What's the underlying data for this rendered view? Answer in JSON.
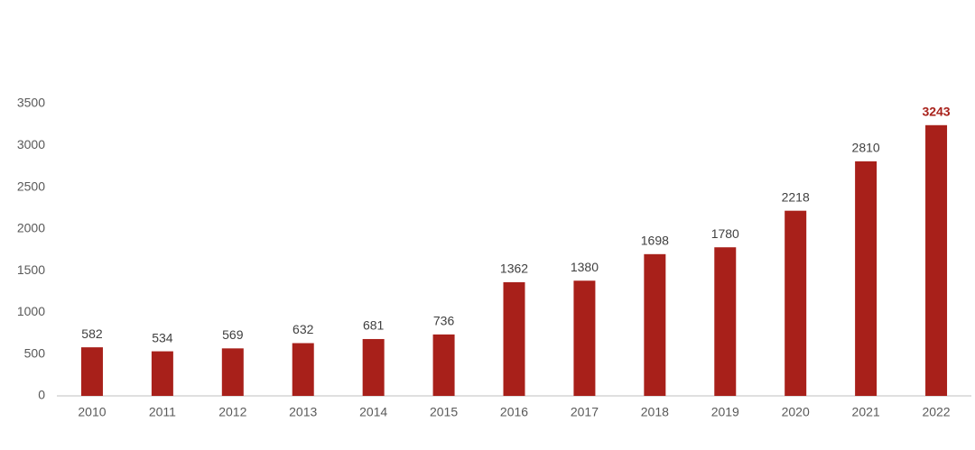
{
  "chart_data": {
    "type": "bar",
    "categories": [
      "2010",
      "2011",
      "2012",
      "2013",
      "2014",
      "2015",
      "2016",
      "2017",
      "2018",
      "2019",
      "2020",
      "2021",
      "2022"
    ],
    "values": [
      582,
      534,
      569,
      632,
      681,
      736,
      1362,
      1380,
      1698,
      1780,
      2218,
      2810,
      3243
    ],
    "color": "#a8201a",
    "ylim": [
      0,
      3500
    ],
    "yticks": [
      0,
      500,
      1000,
      1500,
      2000,
      2500,
      3000,
      3500
    ],
    "grid": false,
    "highlight_last": true,
    "highlight_color": "#a8201a"
  }
}
